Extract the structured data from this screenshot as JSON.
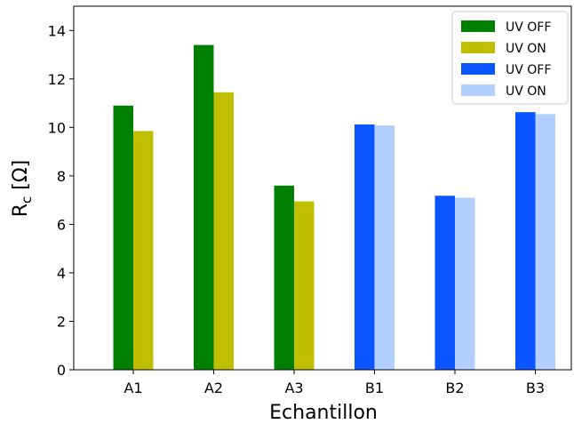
{
  "chart_data": {
    "type": "bar",
    "categories": [
      "A1",
      "A2",
      "A3",
      "B1",
      "B2",
      "B3"
    ],
    "series": [
      {
        "name": "UV OFF",
        "color": "#008000",
        "values": [
          10.9,
          13.4,
          7.6,
          null,
          null,
          null
        ]
      },
      {
        "name": "UV ON",
        "color": "#bfbf00",
        "values": [
          9.85,
          11.45,
          6.95,
          null,
          null,
          null
        ]
      },
      {
        "name": "UV OFF",
        "color": "#0a55ff",
        "values": [
          null,
          null,
          null,
          10.12,
          7.18,
          10.63
        ]
      },
      {
        "name": "UV ON",
        "color": "#b3cfff",
        "values": [
          null,
          null,
          null,
          10.08,
          7.1,
          10.55
        ]
      }
    ],
    "xlabel": "Echantillon",
    "ylabel_main": "R",
    "ylabel_sub": "c",
    "ylabel_unit": " [Ω]",
    "ylim": [
      0,
      15
    ],
    "yticks": [
      0,
      2,
      4,
      6,
      8,
      10,
      12,
      14
    ],
    "grid": false,
    "legend_position": "top-right"
  }
}
